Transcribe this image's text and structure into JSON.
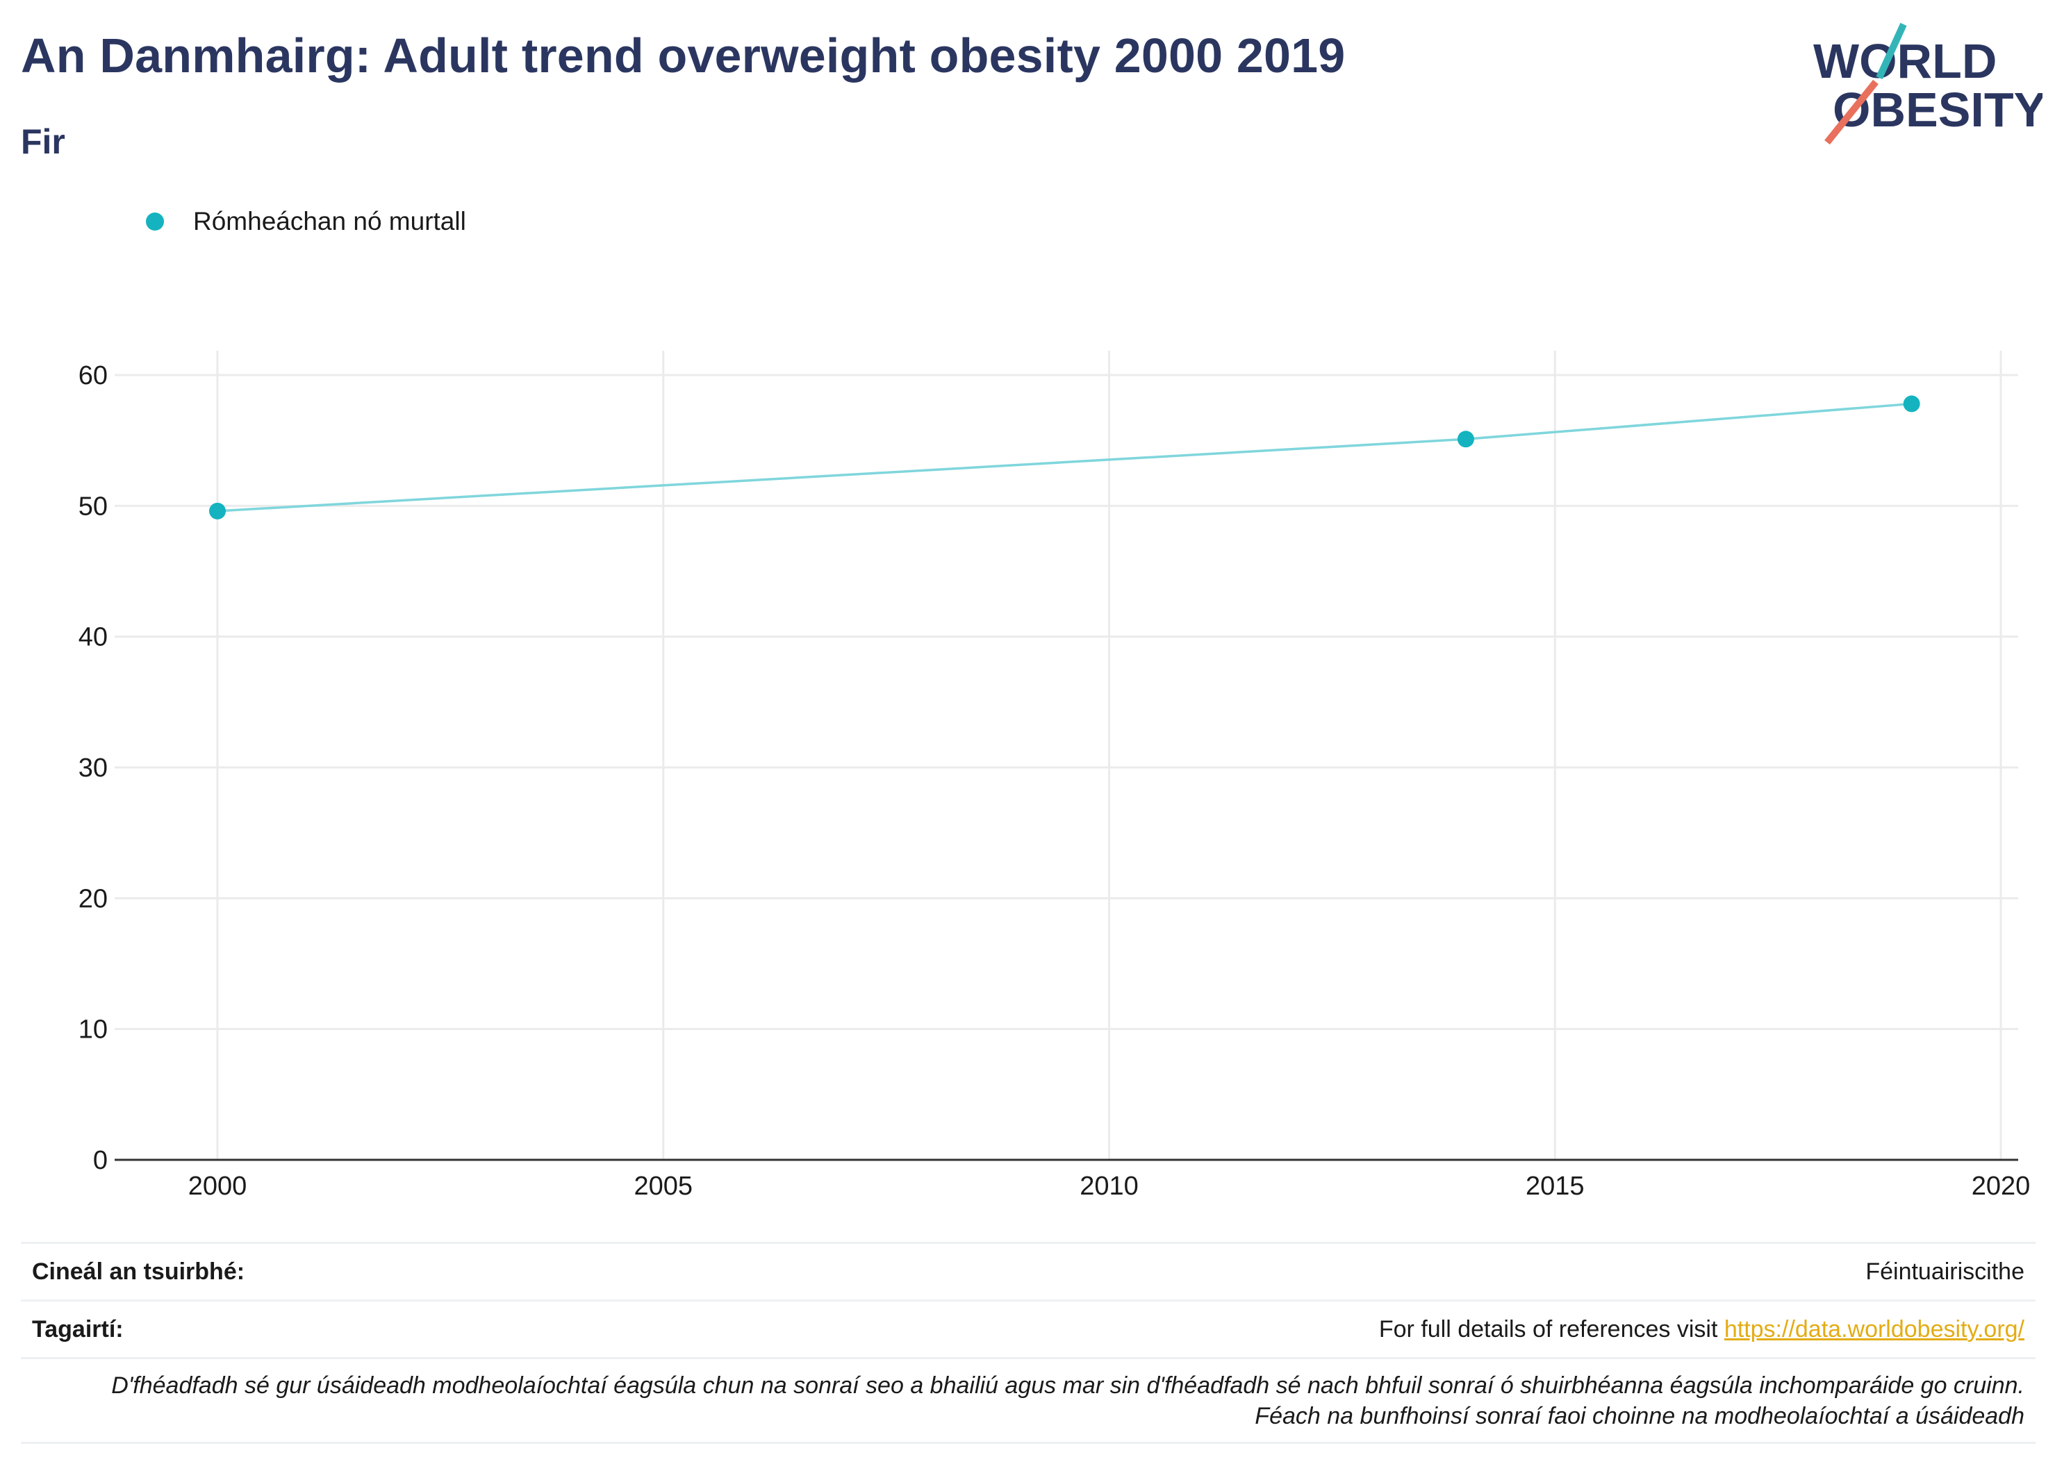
{
  "header": {
    "title": "An Danmhairg: Adult trend overweight obesity 2000 2019",
    "subtitle": "Fir"
  },
  "logo": {
    "line1": "WORLD",
    "line2": "OBESITY",
    "colors": {
      "text": "#2b3660",
      "slash_top": "#33b5b8",
      "slash_bottom": "#e8705c"
    }
  },
  "legend": {
    "series_label": "Rómheáchan nó murtall",
    "color": "#14b3bf"
  },
  "chart_data": {
    "type": "line",
    "series": [
      {
        "name": "Rómheáchan nó murtall",
        "x": [
          2000,
          2014,
          2019
        ],
        "values": [
          49.6,
          55.1,
          57.8
        ],
        "color": "#14b3bf",
        "line_color": "#7fd6dc"
      }
    ],
    "xlim": [
      1999,
      2020.2
    ],
    "ylim": [
      0,
      62
    ],
    "xticks": [
      2000,
      2005,
      2010,
      2015,
      2020
    ],
    "yticks": [
      0,
      10,
      20,
      30,
      40,
      50,
      60
    ],
    "grid": true,
    "legend_position": "top-left",
    "xlabel": "",
    "ylabel": ""
  },
  "footer": {
    "survey_type_label": "Cineál an tsuirbhé:",
    "survey_type_value": "Féintuairiscithe",
    "references_label": "Tagairtí:",
    "references_text": "For full details of references visit ",
    "references_link": "https://data.worldobesity.org/",
    "disclaimer_line1": "D'fhéadfadh sé gur úsáideadh modheolaíochtaí éagsúla chun na sonraí seo a bhailiú agus mar sin d'fhéadfadh sé nach bhfuil sonraí ó shuirbhéanna éagsúla inchomparáide go cruinn.",
    "disclaimer_line2": "Féach na bunfhoinsí sonraí faoi choinne na modheolaíochtaí a úsáideadh"
  }
}
